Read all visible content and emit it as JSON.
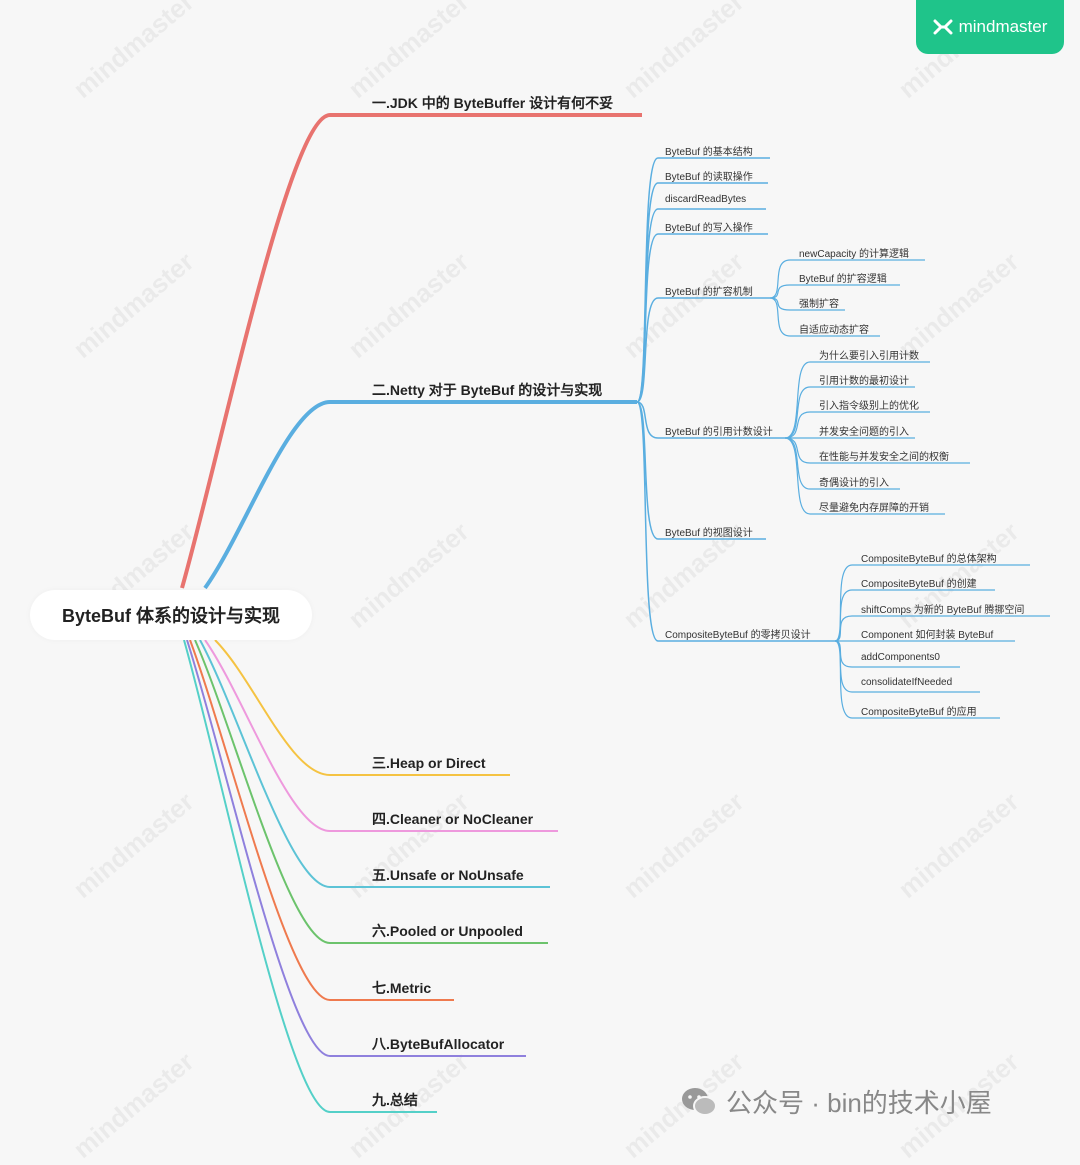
{
  "logo": {
    "text": "mindmaster",
    "bg": "#1fc48a"
  },
  "watermark": "mindmaster",
  "footer": {
    "text": "公众号 · bin的技术小屋",
    "icon": "wechat-icon"
  },
  "root": {
    "label": "ByteBuf 体系的设计与实现"
  },
  "branches": [
    {
      "label": "一.JDK 中的 ByteBuffer 设计有何不妥",
      "color": "#e8736f",
      "children": []
    },
    {
      "label": "二.Netty 对于 ByteBuf 的设计与实现",
      "color": "#5aaee0",
      "children": [
        {
          "label": "ByteBuf 的基本结构",
          "children": []
        },
        {
          "label": "ByteBuf 的读取操作",
          "children": []
        },
        {
          "label": "discardReadBytes",
          "children": []
        },
        {
          "label": "ByteBuf 的写入操作",
          "children": []
        },
        {
          "label": "ByteBuf 的扩容机制",
          "children": [
            {
              "label": "newCapacity 的计算逻辑"
            },
            {
              "label": "ByteBuf 的扩容逻辑"
            },
            {
              "label": "强制扩容"
            },
            {
              "label": "自适应动态扩容"
            }
          ]
        },
        {
          "label": "ByteBuf 的引用计数设计",
          "children": [
            {
              "label": "为什么要引入引用计数"
            },
            {
              "label": "引用计数的最初设计"
            },
            {
              "label": "引入指令级别上的优化"
            },
            {
              "label": "并发安全问题的引入"
            },
            {
              "label": "在性能与并发安全之间的权衡"
            },
            {
              "label": "奇偶设计的引入"
            },
            {
              "label": "尽量避免内存屏障的开销"
            }
          ]
        },
        {
          "label": "ByteBuf 的视图设计",
          "children": []
        },
        {
          "label": "CompositeByteBuf 的零拷贝设计",
          "children": [
            {
              "label": "CompositeByteBuf 的总体架构"
            },
            {
              "label": "CompositeByteBuf 的创建"
            },
            {
              "label": "shiftComps 为新的 ByteBuf 腾挪空间"
            },
            {
              "label": "Component 如何封装 ByteBuf"
            },
            {
              "label": "addComponents0"
            },
            {
              "label": "consolidateIfNeeded"
            },
            {
              "label": "CompositeByteBuf 的应用"
            }
          ]
        }
      ]
    },
    {
      "label": "三.Heap or Direct",
      "color": "#f5c342",
      "children": []
    },
    {
      "label": "四.Cleaner or NoCleaner",
      "color": "#ee99dd",
      "children": []
    },
    {
      "label": "五.Unsafe or NoUnsafe",
      "color": "#5cc3d6",
      "children": []
    },
    {
      "label": "六.Pooled or Unpooled",
      "color": "#6cc36c",
      "children": []
    },
    {
      "label": "七.Metric",
      "color": "#ef7a4e",
      "children": []
    },
    {
      "label": "八.ByteBufAllocator",
      "color": "#8f80dd",
      "children": []
    },
    {
      "label": "九.总结",
      "color": "#54d0c8",
      "children": []
    }
  ]
}
